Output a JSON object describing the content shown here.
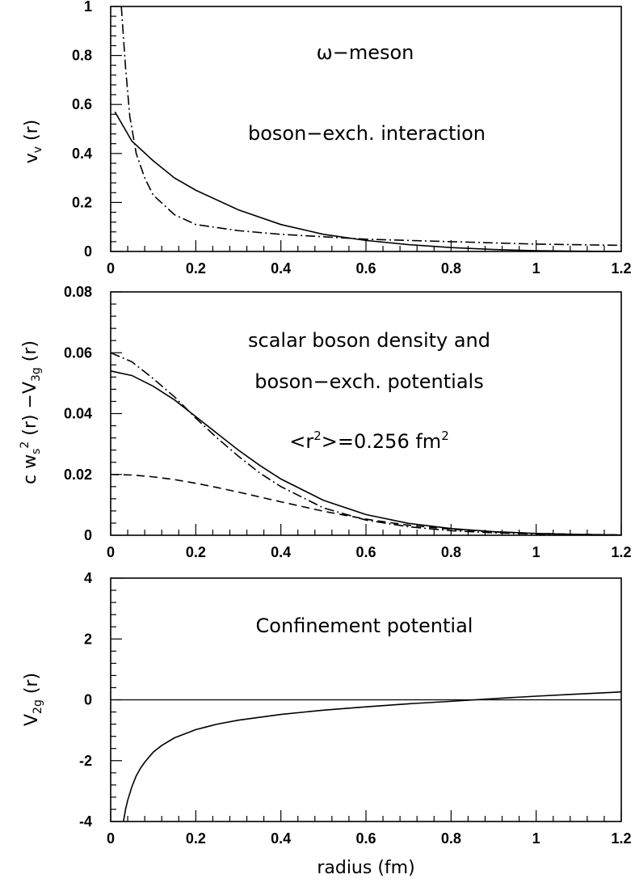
{
  "chart_data": [
    {
      "type": "line",
      "title": "",
      "xlabel": "",
      "ylabel": "v_v (r)",
      "ylabel_main": "v",
      "ylabel_sub": "v",
      "ylabel_rest": " (r)",
      "xlim": [
        0,
        1.2
      ],
      "ylim": [
        0,
        1
      ],
      "x_ticks": [
        0,
        0.2,
        0.4,
        0.6,
        0.8,
        1,
        1.2
      ],
      "x_tick_labels": [
        "0",
        "0.2",
        "0.4",
        "0.6",
        "0.8",
        "1",
        "1.2"
      ],
      "y_ticks": [
        0,
        0.2,
        0.4,
        0.6,
        0.8,
        1
      ],
      "y_tick_labels": [
        "0",
        "0.2",
        "0.4",
        "0.6",
        "0.8",
        "1"
      ],
      "annotations": [
        "ω−meson",
        "boson−exch. interaction"
      ],
      "series": [
        {
          "style": "solid",
          "x": [
            0.01,
            0.05,
            0.1,
            0.15,
            0.2,
            0.3,
            0.4,
            0.5,
            0.6,
            0.7,
            0.8,
            0.9,
            1.0,
            1.1,
            1.2
          ],
          "y": [
            0.57,
            0.45,
            0.37,
            0.3,
            0.25,
            0.17,
            0.11,
            0.07,
            0.045,
            0.028,
            0.016,
            0.008,
            0.003,
            0.001,
            0.0
          ]
        },
        {
          "style": "dashdot",
          "x": [
            0.025,
            0.035,
            0.045,
            0.06,
            0.08,
            0.1,
            0.15,
            0.2,
            0.3,
            0.4,
            0.5,
            0.6,
            0.8,
            1.0,
            1.2
          ],
          "y": [
            1.0,
            0.75,
            0.55,
            0.4,
            0.3,
            0.23,
            0.15,
            0.11,
            0.085,
            0.07,
            0.06,
            0.05,
            0.04,
            0.03,
            0.025
          ]
        }
      ]
    },
    {
      "type": "line",
      "title": "",
      "xlabel": "",
      "ylabel": "c w_s^2 (r) −V_3g (r)",
      "ylabel_c": "c w",
      "ylabel_sub_s": "s",
      "ylabel_sup_2": "2",
      "ylabel_mid": " (r) −V",
      "ylabel_sub_3g": "3g",
      "ylabel_end": " (r)",
      "xlim": [
        0,
        1.2
      ],
      "ylim": [
        0,
        0.08
      ],
      "x_ticks": [
        0,
        0.2,
        0.4,
        0.6,
        0.8,
        1,
        1.2
      ],
      "x_tick_labels": [
        "0",
        "0.2",
        "0.4",
        "0.6",
        "0.8",
        "1",
        "1.2"
      ],
      "y_ticks": [
        0,
        0.02,
        0.04,
        0.06,
        0.08
      ],
      "y_tick_labels": [
        "0",
        "0.02",
        "0.04",
        "0.06",
        "0.08"
      ],
      "annotations": [
        "scalar boson density and",
        "boson−exch. potentials"
      ],
      "annotation_r2_main": "<r",
      "annotation_r2_sup": "2",
      "annotation_r2_rest": ">=0.256 fm",
      "annotation_r2_unit_sup": "2",
      "series": [
        {
          "style": "solid",
          "x": [
            0,
            0.05,
            0.1,
            0.15,
            0.2,
            0.25,
            0.3,
            0.35,
            0.4,
            0.5,
            0.6,
            0.7,
            0.8,
            0.9,
            1.0,
            1.1,
            1.2
          ],
          "y": [
            0.054,
            0.0525,
            0.049,
            0.0445,
            0.039,
            0.0335,
            0.028,
            0.023,
            0.0185,
            0.0115,
            0.0068,
            0.0039,
            0.0022,
            0.0012,
            0.0006,
            0.0003,
            0.0001
          ]
        },
        {
          "style": "dashdot",
          "x": [
            0,
            0.05,
            0.1,
            0.15,
            0.2,
            0.25,
            0.3,
            0.35,
            0.4,
            0.5,
            0.6,
            0.7,
            0.8,
            0.9,
            1.0,
            1.1,
            1.2
          ],
          "y": [
            0.06,
            0.057,
            0.0515,
            0.0455,
            0.0385,
            0.032,
            0.026,
            0.0205,
            0.016,
            0.009,
            0.005,
            0.0028,
            0.0015,
            0.0008,
            0.0004,
            0.0002,
            0.0001
          ]
        },
        {
          "style": "dashed",
          "x": [
            0,
            0.05,
            0.1,
            0.15,
            0.2,
            0.25,
            0.3,
            0.35,
            0.4,
            0.5,
            0.6,
            0.7,
            0.8,
            0.9,
            1.0,
            1.1,
            1.2
          ],
          "y": [
            0.02,
            0.0198,
            0.0192,
            0.0183,
            0.0171,
            0.0157,
            0.0142,
            0.0126,
            0.011,
            0.0079,
            0.0053,
            0.0033,
            0.002,
            0.0011,
            0.0006,
            0.0003,
            0.0001
          ]
        }
      ]
    },
    {
      "type": "line",
      "title": "",
      "xlabel": "radius (fm)",
      "ylabel": "V_2g (r)",
      "ylabel_main": "V",
      "ylabel_sub": "2g",
      "ylabel_rest": " (r)",
      "xlim": [
        0,
        1.2
      ],
      "ylim": [
        -4,
        4
      ],
      "x_ticks": [
        0,
        0.2,
        0.4,
        0.6,
        0.8,
        1,
        1.2
      ],
      "x_tick_labels": [
        "0",
        "0.2",
        "0.4",
        "0.6",
        "0.8",
        "1",
        "1.2"
      ],
      "y_ticks": [
        -4,
        -2,
        0,
        2,
        4
      ],
      "y_tick_labels": [
        "-4",
        "-2",
        "0",
        "2",
        "4"
      ],
      "annotations": [
        "Confinement potential"
      ],
      "reference_line_y": 0,
      "series": [
        {
          "style": "solid",
          "x": [
            0.03,
            0.035,
            0.04,
            0.05,
            0.06,
            0.07,
            0.08,
            0.1,
            0.12,
            0.15,
            0.2,
            0.25,
            0.3,
            0.4,
            0.5,
            0.6,
            0.7,
            0.8,
            0.9,
            1.0,
            1.1,
            1.2
          ],
          "y": [
            -4.0,
            -3.6,
            -3.3,
            -2.85,
            -2.5,
            -2.25,
            -2.05,
            -1.72,
            -1.5,
            -1.25,
            -0.98,
            -0.8,
            -0.67,
            -0.48,
            -0.34,
            -0.23,
            -0.13,
            -0.05,
            0.04,
            0.12,
            0.19,
            0.26
          ]
        }
      ]
    }
  ]
}
